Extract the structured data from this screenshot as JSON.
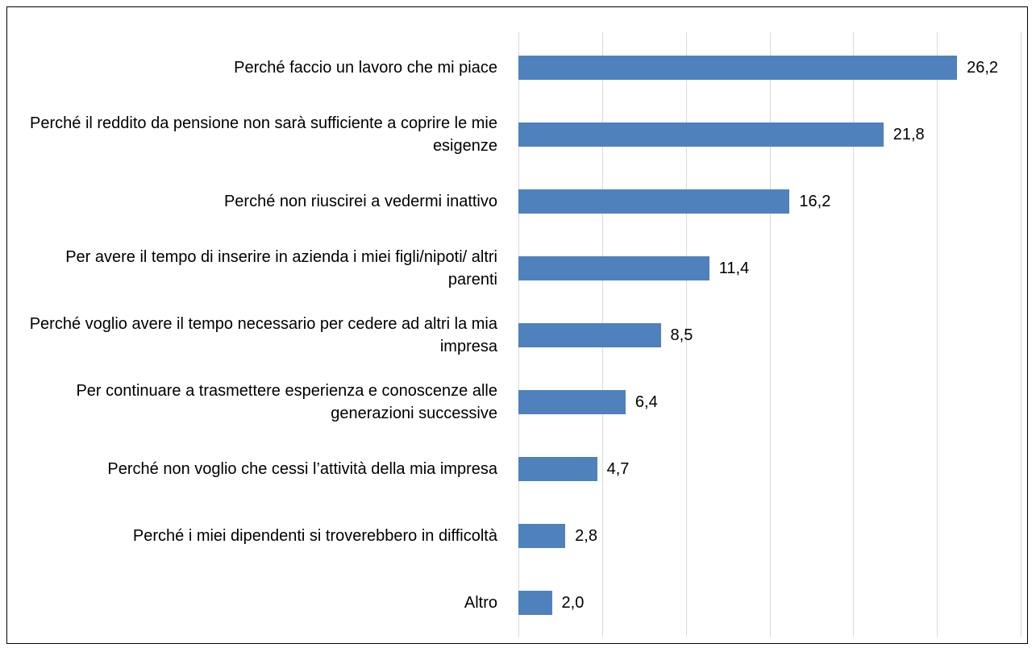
{
  "chart_data": {
    "type": "barh",
    "categories": [
      "Perché faccio un lavoro che mi piace",
      "Perché il reddito da pensione non sarà sufficiente a coprire le mie esigenze",
      "Perché non riuscirei a vedermi inattivo",
      "Per avere il tempo di inserire in azienda i miei figli/nipoti/ altri parenti",
      "Perché voglio avere il tempo necessario per cedere ad altri la mia impresa",
      "Per continuare a trasmettere esperienza e conoscenze alle generazioni successive",
      "Perché non voglio che cessi l’attività della mia impresa",
      "Perché i miei dipendenti si troverebbero in difficoltà",
      "Altro"
    ],
    "values": [
      26.2,
      21.8,
      16.2,
      11.4,
      8.5,
      6.4,
      4.7,
      2.8,
      2.0
    ],
    "value_labels": [
      "26,2",
      "21,8",
      "16,2",
      "11,4",
      "8,5",
      "6,4",
      "4,7",
      "2,8",
      "2,0"
    ],
    "color": "#4f81bd",
    "xlim": [
      0,
      30
    ],
    "xticks": [
      0,
      5,
      10,
      15,
      20,
      25,
      30
    ],
    "grid": true
  }
}
